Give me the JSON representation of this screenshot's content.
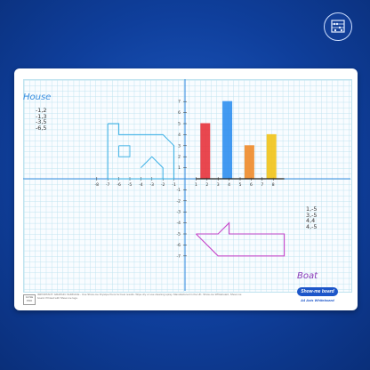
{
  "board": {
    "house_label": "House",
    "house_coords": [
      "-1,2",
      "-1,3",
      "-3,5",
      "-6,5"
    ],
    "boat_label": "Boat",
    "boat_coords": [
      "1,-5",
      "3,-5",
      "4,4",
      "4,-5"
    ],
    "x_ticks": [
      "-8",
      "-7",
      "-6",
      "-5",
      "-4",
      "-3",
      "-2",
      "-1",
      "1",
      "2",
      "3",
      "4",
      "5",
      "6",
      "7",
      "8"
    ],
    "y_ticks": [
      "7",
      "6",
      "5",
      "4",
      "3",
      "2",
      "1",
      "-1",
      "-2",
      "-3",
      "-4",
      "-5",
      "-6",
      "-7"
    ],
    "bars": [
      {
        "x": 2,
        "value": 5,
        "color": "#e8343c"
      },
      {
        "x": 4,
        "value": 7,
        "color": "#2f8ff0"
      },
      {
        "x": 6,
        "value": 3,
        "color": "#f08a2a"
      },
      {
        "x": 8,
        "value": 4,
        "color": "#f2c418"
      }
    ],
    "house_color": "#3ab0e6",
    "boat_color": "#c545c9",
    "axis_color": "#3a8fe0"
  },
  "footer": {
    "box_text": "GCSE PRO",
    "text": "IMPORTANT: GRAPHIC SURFACE - Use Show-me Drywipe Pens for best results. Wipe dry or use cleaning spray. Manufactured in the UK. Show-me Whiteboard, Show-me board. Printed with Show-me logo.",
    "logo": "Show-me board",
    "tagline": "A4 Axis Whiteboard"
  },
  "colors": {
    "background": "#0f3f9c",
    "accent": "#1d56c9"
  },
  "icons": {
    "corner": "abacus-icon"
  }
}
